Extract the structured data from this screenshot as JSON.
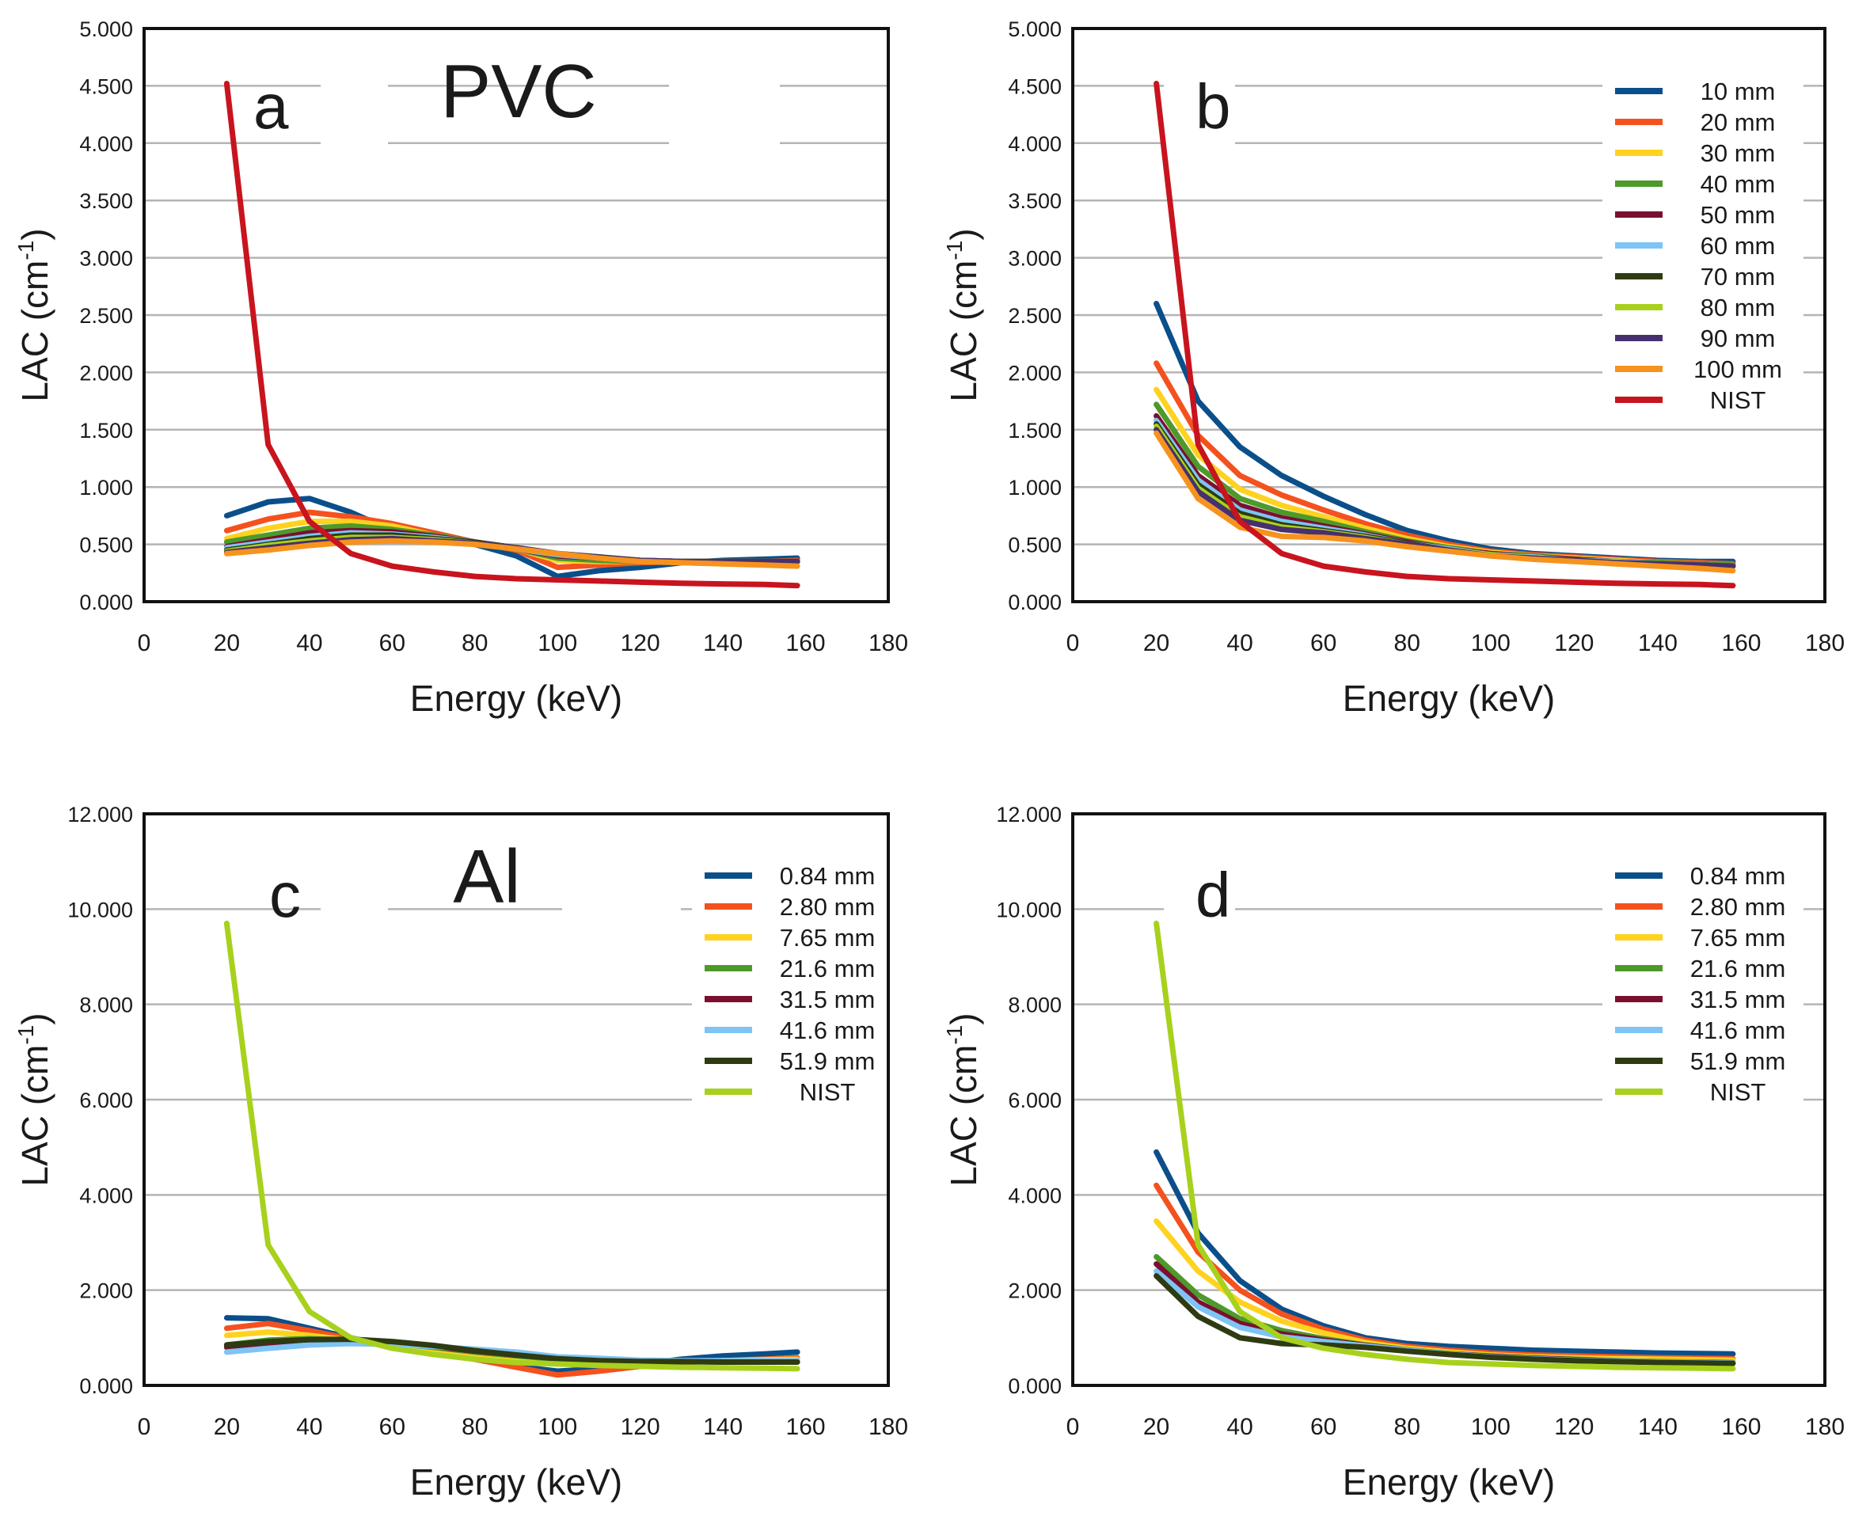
{
  "chart_data": [
    {
      "id": "a",
      "type": "line",
      "panel_label": "a",
      "title": "PVC",
      "xlabel": "Energy (keV)",
      "ylabel_main": "LAC (cm",
      "ylabel_sup": "-1",
      "ylabel_close": ")",
      "xlim": [
        0,
        180
      ],
      "ylim": [
        0,
        5
      ],
      "xticks": [
        0,
        20,
        40,
        60,
        80,
        100,
        120,
        140,
        160,
        180
      ],
      "yticks": [
        0,
        0.5,
        1,
        1.5,
        2,
        2.5,
        3,
        3.5,
        4,
        4.5,
        5
      ],
      "ytick_labels": [
        "0.000",
        "0.500",
        "1.000",
        "1.500",
        "2.000",
        "2.500",
        "3.000",
        "3.500",
        "4.000",
        "4.500",
        "5.000"
      ],
      "legend": false,
      "x": [
        20,
        30,
        40,
        50,
        60,
        70,
        80,
        90,
        100,
        110,
        120,
        130,
        140,
        150,
        158
      ],
      "series": [
        {
          "name": "10 mm",
          "color": "#0b4f8a",
          "values": [
            0.75,
            0.87,
            0.9,
            0.78,
            0.62,
            0.55,
            0.5,
            0.4,
            0.22,
            0.27,
            0.3,
            0.34,
            0.36,
            0.37,
            0.38
          ]
        },
        {
          "name": "20 mm",
          "color": "#f4511e",
          "values": [
            0.62,
            0.72,
            0.78,
            0.74,
            0.68,
            0.6,
            0.52,
            0.45,
            0.3,
            0.32,
            0.34,
            0.35,
            0.35,
            0.35,
            0.36
          ]
        },
        {
          "name": "30 mm",
          "color": "#ffd21f",
          "values": [
            0.55,
            0.64,
            0.7,
            0.7,
            0.66,
            0.58,
            0.52,
            0.46,
            0.36,
            0.35,
            0.35,
            0.35,
            0.35,
            0.35,
            0.35
          ]
        },
        {
          "name": "40 mm",
          "color": "#4d9a2a",
          "values": [
            0.52,
            0.58,
            0.64,
            0.66,
            0.63,
            0.58,
            0.52,
            0.46,
            0.38,
            0.36,
            0.35,
            0.35,
            0.35,
            0.35,
            0.35
          ]
        },
        {
          "name": "50 mm",
          "color": "#7a1030",
          "values": [
            0.48,
            0.54,
            0.6,
            0.62,
            0.61,
            0.57,
            0.52,
            0.46,
            0.4,
            0.38,
            0.36,
            0.35,
            0.35,
            0.35,
            0.35
          ]
        },
        {
          "name": "60 mm",
          "color": "#7ec4f4",
          "values": [
            0.47,
            0.52,
            0.57,
            0.6,
            0.59,
            0.56,
            0.52,
            0.46,
            0.41,
            0.38,
            0.36,
            0.35,
            0.35,
            0.35,
            0.35
          ]
        },
        {
          "name": "70 mm",
          "color": "#2e3a12",
          "values": [
            0.45,
            0.5,
            0.55,
            0.58,
            0.58,
            0.55,
            0.52,
            0.47,
            0.42,
            0.38,
            0.36,
            0.35,
            0.35,
            0.35,
            0.35
          ]
        },
        {
          "name": "80 mm",
          "color": "#a8d11d",
          "values": [
            0.44,
            0.49,
            0.53,
            0.56,
            0.56,
            0.54,
            0.51,
            0.47,
            0.42,
            0.39,
            0.36,
            0.35,
            0.35,
            0.35,
            0.35
          ]
        },
        {
          "name": "90 mm",
          "color": "#47306e",
          "values": [
            0.43,
            0.47,
            0.51,
            0.54,
            0.55,
            0.53,
            0.51,
            0.47,
            0.42,
            0.39,
            0.36,
            0.35,
            0.35,
            0.35,
            0.35
          ]
        },
        {
          "name": "100 mm",
          "color": "#f6931e",
          "values": [
            0.42,
            0.45,
            0.49,
            0.52,
            0.53,
            0.52,
            0.5,
            0.46,
            0.42,
            0.38,
            0.35,
            0.34,
            0.33,
            0.32,
            0.31
          ]
        },
        {
          "name": "NIST",
          "color": "#c8141e",
          "values": [
            4.52,
            1.37,
            0.7,
            0.42,
            0.31,
            0.26,
            0.22,
            0.2,
            0.19,
            0.18,
            0.17,
            0.16,
            0.155,
            0.15,
            0.14
          ]
        }
      ]
    },
    {
      "id": "b",
      "type": "line",
      "panel_label": "b",
      "title": "",
      "xlabel": "Energy (keV)",
      "ylabel_main": "LAC (cm",
      "ylabel_sup": "-1",
      "ylabel_close": ")",
      "xlim": [
        0,
        180
      ],
      "ylim": [
        0,
        5
      ],
      "xticks": [
        0,
        20,
        40,
        60,
        80,
        100,
        120,
        140,
        160,
        180
      ],
      "yticks": [
        0,
        0.5,
        1,
        1.5,
        2,
        2.5,
        3,
        3.5,
        4,
        4.5,
        5
      ],
      "ytick_labels": [
        "0.000",
        "0.500",
        "1.000",
        "1.500",
        "2.000",
        "2.500",
        "3.000",
        "3.500",
        "4.000",
        "4.500",
        "5.000"
      ],
      "legend": true,
      "x": [
        20,
        30,
        40,
        50,
        60,
        70,
        80,
        90,
        100,
        110,
        120,
        130,
        140,
        150,
        158
      ],
      "series": [
        {
          "name": "10 mm",
          "color": "#0b4f8a",
          "values": [
            2.6,
            1.75,
            1.35,
            1.1,
            0.92,
            0.76,
            0.62,
            0.53,
            0.46,
            0.42,
            0.4,
            0.38,
            0.36,
            0.35,
            0.35
          ]
        },
        {
          "name": "20 mm",
          "color": "#f4511e",
          "values": [
            2.08,
            1.45,
            1.1,
            0.93,
            0.8,
            0.68,
            0.58,
            0.5,
            0.44,
            0.41,
            0.39,
            0.37,
            0.35,
            0.34,
            0.33
          ]
        },
        {
          "name": "30 mm",
          "color": "#ffd21f",
          "values": [
            1.85,
            1.28,
            0.98,
            0.84,
            0.74,
            0.64,
            0.55,
            0.48,
            0.43,
            0.4,
            0.38,
            0.36,
            0.34,
            0.33,
            0.32
          ]
        },
        {
          "name": "40 mm",
          "color": "#4d9a2a",
          "values": [
            1.72,
            1.18,
            0.9,
            0.78,
            0.7,
            0.61,
            0.53,
            0.47,
            0.42,
            0.4,
            0.37,
            0.35,
            0.34,
            0.33,
            0.32
          ]
        },
        {
          "name": "50 mm",
          "color": "#7a1030",
          "values": [
            1.62,
            1.1,
            0.84,
            0.73,
            0.66,
            0.59,
            0.52,
            0.46,
            0.42,
            0.39,
            0.37,
            0.35,
            0.33,
            0.32,
            0.31
          ]
        },
        {
          "name": "60 mm",
          "color": "#7ec4f4",
          "values": [
            1.58,
            1.06,
            0.8,
            0.7,
            0.64,
            0.58,
            0.51,
            0.46,
            0.41,
            0.39,
            0.36,
            0.35,
            0.33,
            0.32,
            0.31
          ]
        },
        {
          "name": "70 mm",
          "color": "#2e3a12",
          "values": [
            1.55,
            1.02,
            0.77,
            0.67,
            0.62,
            0.57,
            0.51,
            0.45,
            0.41,
            0.38,
            0.36,
            0.34,
            0.33,
            0.32,
            0.31
          ]
        },
        {
          "name": "80 mm",
          "color": "#a8d11d",
          "values": [
            1.53,
            0.99,
            0.74,
            0.65,
            0.61,
            0.56,
            0.5,
            0.45,
            0.41,
            0.38,
            0.36,
            0.34,
            0.33,
            0.32,
            0.31
          ]
        },
        {
          "name": "90 mm",
          "color": "#47306e",
          "values": [
            1.5,
            0.96,
            0.71,
            0.63,
            0.6,
            0.55,
            0.5,
            0.45,
            0.4,
            0.38,
            0.36,
            0.34,
            0.33,
            0.32,
            0.31
          ]
        },
        {
          "name": "100 mm",
          "color": "#f6931e",
          "values": [
            1.47,
            0.9,
            0.65,
            0.57,
            0.56,
            0.53,
            0.48,
            0.44,
            0.4,
            0.37,
            0.35,
            0.33,
            0.31,
            0.29,
            0.27
          ]
        },
        {
          "name": "NIST",
          "color": "#c8141e",
          "values": [
            4.52,
            1.37,
            0.7,
            0.42,
            0.31,
            0.26,
            0.22,
            0.2,
            0.19,
            0.18,
            0.17,
            0.16,
            0.155,
            0.15,
            0.14
          ]
        }
      ]
    },
    {
      "id": "c",
      "type": "line",
      "panel_label": "c",
      "title": "Al",
      "xlabel": "Energy (keV)",
      "ylabel_main": "LAC (cm",
      "ylabel_sup": "-1",
      "ylabel_close": ")",
      "xlim": [
        0,
        180
      ],
      "ylim": [
        0,
        12
      ],
      "xticks": [
        0,
        20,
        40,
        60,
        80,
        100,
        120,
        140,
        160,
        180
      ],
      "yticks": [
        0,
        2,
        4,
        6,
        8,
        10,
        12
      ],
      "ytick_labels": [
        "0.000",
        "2.000",
        "4.000",
        "6.000",
        "8.000",
        "10.000",
        "12.000"
      ],
      "legend": true,
      "x": [
        20,
        30,
        40,
        50,
        60,
        70,
        80,
        90,
        100,
        110,
        120,
        130,
        140,
        150,
        158
      ],
      "series": [
        {
          "name": "0.84 mm",
          "color": "#0b4f8a",
          "values": [
            1.42,
            1.4,
            1.2,
            1.0,
            0.8,
            0.7,
            0.55,
            0.4,
            0.3,
            0.35,
            0.45,
            0.55,
            0.62,
            0.66,
            0.7
          ]
        },
        {
          "name": "2.80 mm",
          "color": "#f4511e",
          "values": [
            1.2,
            1.3,
            1.15,
            0.98,
            0.82,
            0.7,
            0.55,
            0.38,
            0.22,
            0.3,
            0.4,
            0.48,
            0.52,
            0.55,
            0.58
          ]
        },
        {
          "name": "7.65 mm",
          "color": "#ffd21f",
          "values": [
            1.05,
            1.12,
            1.05,
            0.95,
            0.85,
            0.75,
            0.62,
            0.52,
            0.45,
            0.45,
            0.47,
            0.5,
            0.52,
            0.54,
            0.55
          ]
        },
        {
          "name": "21.6 mm",
          "color": "#4d9a2a",
          "values": [
            0.85,
            0.95,
            0.98,
            0.95,
            0.88,
            0.8,
            0.7,
            0.62,
            0.55,
            0.52,
            0.5,
            0.5,
            0.5,
            0.5,
            0.5
          ]
        },
        {
          "name": "31.5 mm",
          "color": "#7a1030",
          "values": [
            0.8,
            0.88,
            0.93,
            0.94,
            0.9,
            0.82,
            0.72,
            0.64,
            0.57,
            0.53,
            0.5,
            0.5,
            0.5,
            0.5,
            0.5
          ]
        },
        {
          "name": "41.6 mm",
          "color": "#7ec4f4",
          "values": [
            0.7,
            0.78,
            0.85,
            0.88,
            0.86,
            0.82,
            0.76,
            0.7,
            0.6,
            0.57,
            0.53,
            0.52,
            0.52,
            0.52,
            0.52
          ]
        },
        {
          "name": "51.9 mm",
          "color": "#2e3a12",
          "values": [
            0.85,
            0.92,
            0.96,
            0.97,
            0.92,
            0.84,
            0.73,
            0.64,
            0.56,
            0.52,
            0.5,
            0.5,
            0.49,
            0.49,
            0.49
          ]
        },
        {
          "name": "NIST",
          "color": "#a8d11d",
          "values": [
            9.7,
            2.95,
            1.55,
            1.0,
            0.78,
            0.65,
            0.55,
            0.48,
            0.45,
            0.42,
            0.4,
            0.38,
            0.37,
            0.36,
            0.35
          ]
        }
      ]
    },
    {
      "id": "d",
      "type": "line",
      "panel_label": "d",
      "title": "",
      "xlabel": "Energy (keV)",
      "ylabel_main": "LAC (cm",
      "ylabel_sup": "-1",
      "ylabel_close": ")",
      "xlim": [
        0,
        180
      ],
      "ylim": [
        0,
        12
      ],
      "xticks": [
        0,
        20,
        40,
        60,
        80,
        100,
        120,
        140,
        160,
        180
      ],
      "yticks": [
        0,
        2,
        4,
        6,
        8,
        10,
        12
      ],
      "ytick_labels": [
        "0.000",
        "2.000",
        "4.000",
        "6.000",
        "8.000",
        "10.000",
        "12.000"
      ],
      "legend": true,
      "x": [
        20,
        30,
        40,
        50,
        60,
        70,
        80,
        90,
        100,
        110,
        120,
        130,
        140,
        150,
        158
      ],
      "series": [
        {
          "name": "0.84 mm",
          "color": "#0b4f8a",
          "values": [
            4.9,
            3.2,
            2.2,
            1.6,
            1.25,
            1.0,
            0.88,
            0.82,
            0.78,
            0.74,
            0.72,
            0.7,
            0.68,
            0.67,
            0.66
          ]
        },
        {
          "name": "2.80 mm",
          "color": "#f4511e",
          "values": [
            4.2,
            2.8,
            2.0,
            1.5,
            1.18,
            0.95,
            0.82,
            0.74,
            0.68,
            0.64,
            0.62,
            0.6,
            0.58,
            0.57,
            0.56
          ]
        },
        {
          "name": "7.65 mm",
          "color": "#ffd21f",
          "values": [
            3.45,
            2.4,
            1.75,
            1.35,
            1.1,
            0.9,
            0.78,
            0.7,
            0.64,
            0.6,
            0.58,
            0.56,
            0.55,
            0.54,
            0.53
          ]
        },
        {
          "name": "21.6 mm",
          "color": "#4d9a2a",
          "values": [
            2.7,
            1.9,
            1.4,
            1.15,
            0.98,
            0.85,
            0.75,
            0.67,
            0.62,
            0.58,
            0.55,
            0.52,
            0.5,
            0.49,
            0.48
          ]
        },
        {
          "name": "31.5 mm",
          "color": "#7a1030",
          "values": [
            2.55,
            1.75,
            1.3,
            1.08,
            0.95,
            0.84,
            0.74,
            0.66,
            0.61,
            0.57,
            0.54,
            0.51,
            0.49,
            0.48,
            0.47
          ]
        },
        {
          "name": "41.6 mm",
          "color": "#7ec4f4",
          "values": [
            2.4,
            1.65,
            1.22,
            1.02,
            0.92,
            0.83,
            0.74,
            0.66,
            0.6,
            0.56,
            0.53,
            0.51,
            0.49,
            0.48,
            0.47
          ]
        },
        {
          "name": "51.9 mm",
          "color": "#2e3a12",
          "values": [
            2.3,
            1.45,
            1.0,
            0.88,
            0.85,
            0.8,
            0.72,
            0.65,
            0.59,
            0.55,
            0.52,
            0.5,
            0.48,
            0.47,
            0.46
          ]
        },
        {
          "name": "NIST",
          "color": "#a8d11d",
          "values": [
            9.7,
            2.95,
            1.55,
            1.0,
            0.78,
            0.65,
            0.55,
            0.48,
            0.45,
            0.42,
            0.4,
            0.38,
            0.37,
            0.36,
            0.35
          ]
        }
      ]
    }
  ]
}
